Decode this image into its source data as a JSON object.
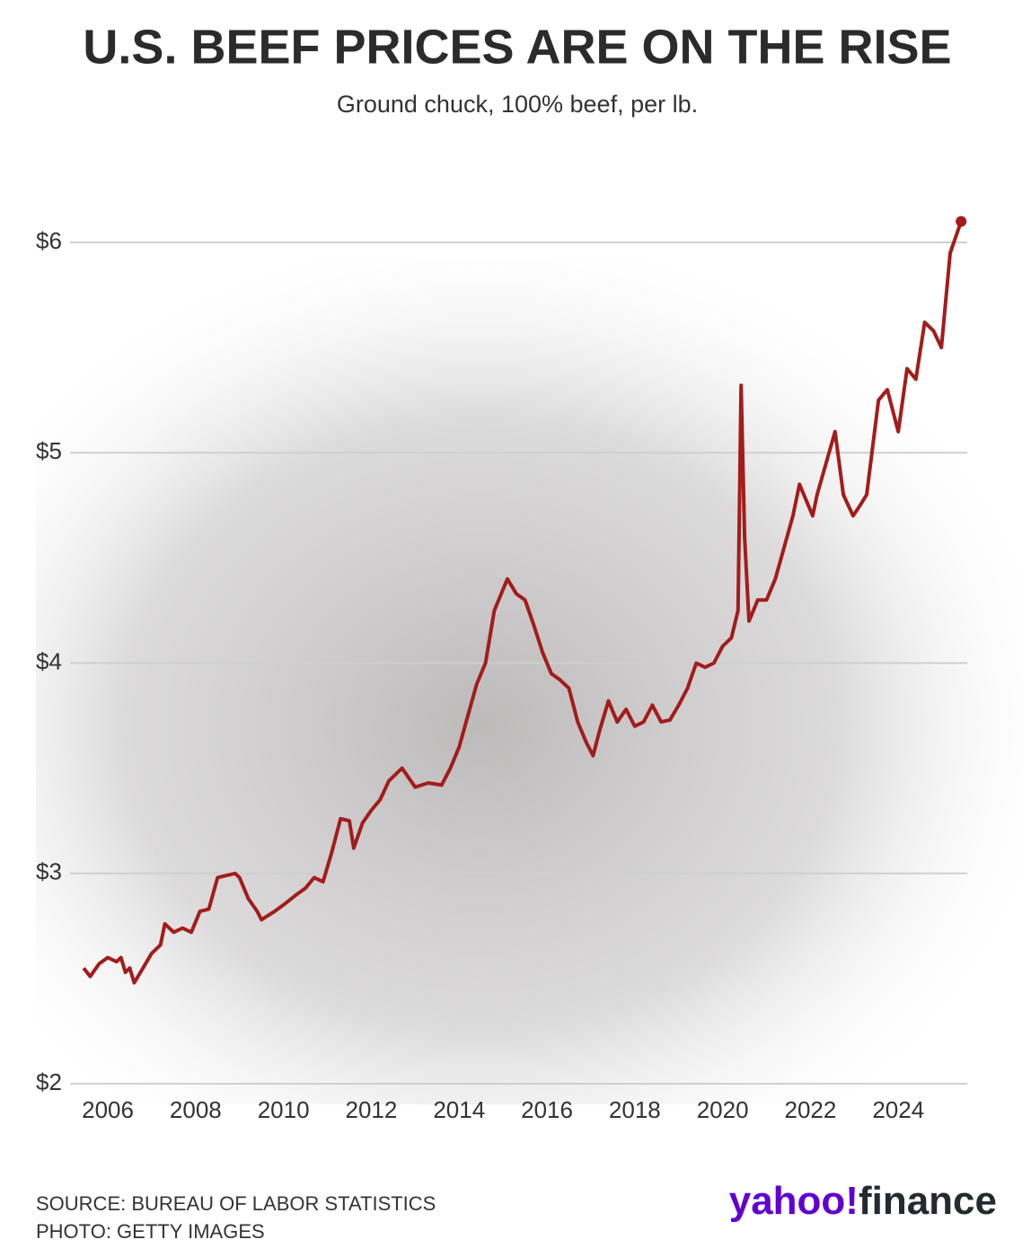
{
  "chart_data": {
    "type": "line",
    "title": "U.S. BEEF PRICES ARE ON THE RISE",
    "subtitle": "Ground chuck, 100% beef, per lb.",
    "source": "SOURCE: BUREAU OF LABOR STATISTICS",
    "photo": "PHOTO: GETTY IMAGES",
    "logo": {
      "yahoo": "yahoo!",
      "finance": "finance"
    },
    "x": [
      2005.45,
      2005.6,
      2005.8,
      2006.0,
      2006.2,
      2006.3,
      2006.4,
      2006.5,
      2006.6,
      2006.8,
      2007.0,
      2007.2,
      2007.3,
      2007.5,
      2007.7,
      2007.9,
      2008.1,
      2008.3,
      2008.5,
      2008.7,
      2008.9,
      2009.0,
      2009.2,
      2009.4,
      2009.5,
      2009.8,
      2010.0,
      2010.3,
      2010.5,
      2010.7,
      2010.9,
      2011.1,
      2011.3,
      2011.5,
      2011.6,
      2011.8,
      2012.0,
      2012.2,
      2012.4,
      2012.7,
      2013.0,
      2013.3,
      2013.6,
      2013.8,
      2014.0,
      2014.2,
      2014.4,
      2014.6,
      2014.8,
      2015.0,
      2015.1,
      2015.3,
      2015.5,
      2015.7,
      2015.9,
      2016.1,
      2016.3,
      2016.5,
      2016.7,
      2016.9,
      2017.05,
      2017.2,
      2017.4,
      2017.6,
      2017.8,
      2018.0,
      2018.2,
      2018.4,
      2018.6,
      2018.8,
      2019.0,
      2019.2,
      2019.4,
      2019.6,
      2019.8,
      2020.0,
      2020.2,
      2020.35,
      2020.42,
      2020.5,
      2020.6,
      2020.8,
      2021.0,
      2021.2,
      2021.4,
      2021.6,
      2021.75,
      2022.05,
      2022.15,
      2022.56,
      2022.75,
      2022.97,
      2023.13,
      2023.28,
      2023.55,
      2023.75,
      2024.0,
      2024.2,
      2024.4,
      2024.6,
      2024.8,
      2024.98,
      2025.18,
      2025.43
    ],
    "series": [
      {
        "name": "Ground chuck",
        "color": "#a31c1c",
        "values": [
          2.55,
          2.51,
          2.57,
          2.6,
          2.58,
          2.6,
          2.53,
          2.55,
          2.48,
          2.55,
          2.62,
          2.66,
          2.76,
          2.72,
          2.74,
          2.72,
          2.82,
          2.83,
          2.98,
          2.99,
          3.0,
          2.98,
          2.88,
          2.82,
          2.78,
          2.82,
          2.85,
          2.9,
          2.93,
          2.98,
          2.96,
          3.1,
          3.26,
          3.25,
          3.12,
          3.24,
          3.3,
          3.35,
          3.44,
          3.5,
          3.41,
          3.43,
          3.42,
          3.5,
          3.6,
          3.75,
          3.9,
          4.0,
          4.25,
          4.35,
          4.4,
          4.33,
          4.3,
          4.18,
          4.05,
          3.95,
          3.92,
          3.88,
          3.72,
          3.62,
          3.56,
          3.68,
          3.82,
          3.72,
          3.78,
          3.7,
          3.72,
          3.8,
          3.72,
          3.73,
          3.8,
          3.88,
          4.0,
          3.98,
          4.0,
          4.08,
          4.12,
          4.25,
          5.32,
          4.6,
          4.2,
          4.3,
          4.3,
          4.4,
          4.55,
          4.7,
          4.85,
          4.7,
          4.8,
          5.1,
          4.8,
          4.7,
          4.75,
          4.8,
          5.25,
          5.3,
          5.1,
          5.4,
          5.35,
          5.62,
          5.58,
          5.5,
          5.95,
          6.1
        ]
      }
    ],
    "xlim": [
      2005.4,
      2025.5
    ],
    "xticks": [
      2006,
      2008,
      2010,
      2012,
      2014,
      2016,
      2018,
      2020,
      2022,
      2024
    ],
    "ylim": [
      2,
      6.1
    ],
    "yticks": [
      {
        "value": 2,
        "label": "$2"
      },
      {
        "value": 3,
        "label": "$3"
      },
      {
        "value": 4,
        "label": "$4"
      },
      {
        "value": 5,
        "label": "$5"
      },
      {
        "value": 6,
        "label": "$6"
      }
    ],
    "grid": true
  }
}
